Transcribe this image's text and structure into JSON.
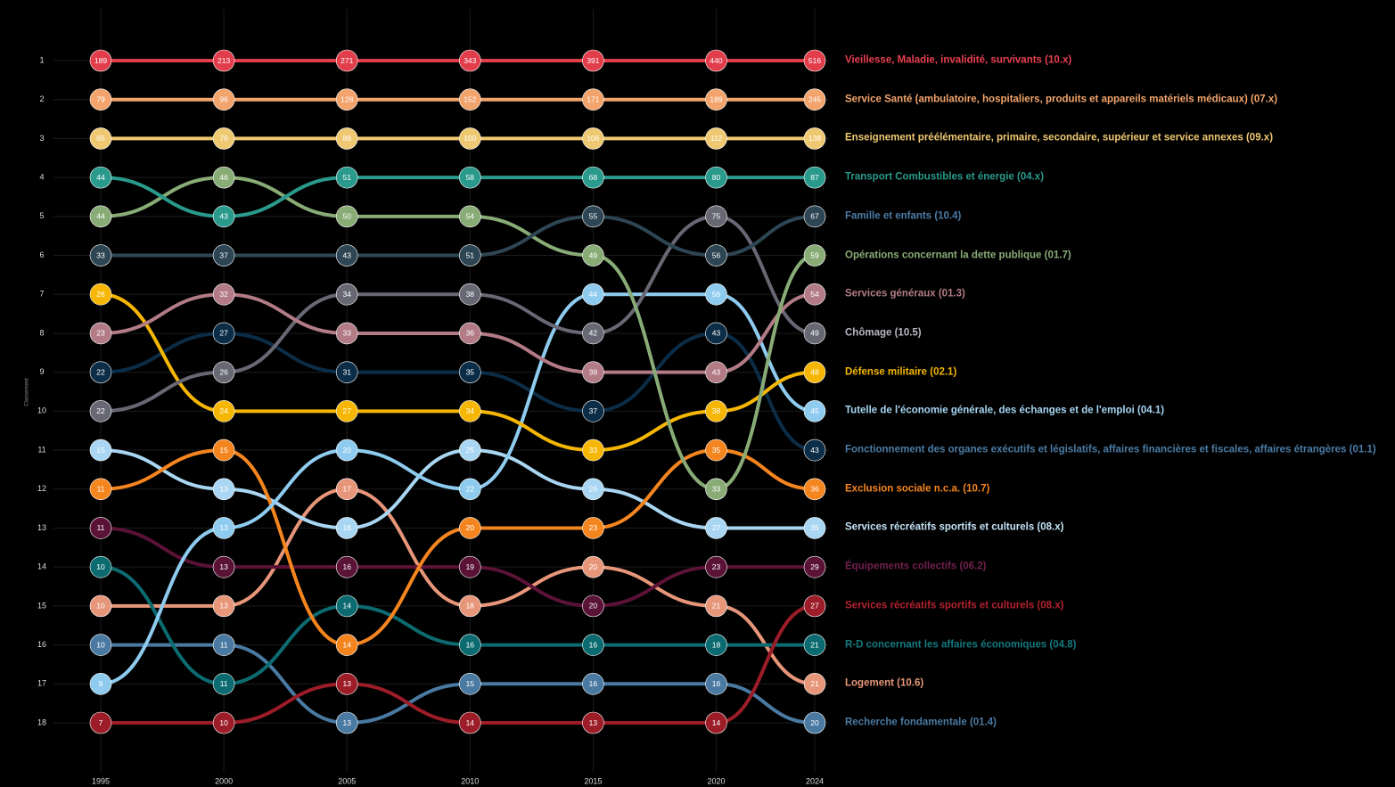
{
  "chart_data": {
    "type": "bump",
    "y_label": "Classement",
    "x": [
      1995,
      2000,
      2005,
      2010,
      2015,
      2020,
      2024
    ],
    "xlim": [
      1995,
      2024
    ],
    "xticks": [
      1995,
      2000,
      2005,
      2010,
      2015,
      2020,
      2024
    ],
    "ylim": [
      1,
      18
    ],
    "yticks": [
      1,
      2,
      3,
      4,
      5,
      6,
      7,
      8,
      9,
      10,
      11,
      12,
      13,
      14,
      15,
      16,
      17,
      18
    ],
    "grid": true,
    "series": [
      {
        "name": "Vieillesse, Maladie, invalidité, survivants (10.x)",
        "color": "#e23d4b",
        "label_color": "#e8404f",
        "values": [
          1,
          1,
          1,
          1,
          1,
          1,
          1
        ],
        "amounts": [
          189,
          213,
          271,
          343,
          391,
          440,
          516
        ]
      },
      {
        "name": "Service Santé (ambulatoire, hospitaliers, produits et appareils matériels médicaux) (07.x)",
        "color": "#f2a46c",
        "label_color": "#f2a46c",
        "values": [
          2,
          2,
          2,
          2,
          2,
          2,
          2
        ],
        "amounts": [
          79,
          96,
          128,
          152,
          171,
          189,
          245
        ]
      },
      {
        "name": "Enseignement préélémentaire, primaire, secondaire, supérieur et service annexes (09.x)",
        "color": "#efc872",
        "label_color": "#efc872",
        "values": [
          3,
          3,
          3,
          3,
          3,
          3,
          3
        ],
        "amounts": [
          65,
          76,
          88,
          100,
          106,
          112,
          138
        ]
      },
      {
        "name": "Transport Combustibles et énergie (04.x)",
        "color": "#2a9a8c",
        "label_color": "#2a9a8c",
        "values": [
          4,
          5,
          4,
          4,
          4,
          4,
          4
        ],
        "amounts": [
          44,
          43,
          51,
          58,
          68,
          80,
          87
        ]
      },
      {
        "name": "Famille et enfants (10.4)",
        "color": "#2e4654",
        "label_color": "#4b7ca6",
        "values": [
          6,
          6,
          6,
          6,
          5,
          6,
          5
        ],
        "amounts": [
          33,
          37,
          43,
          51,
          55,
          56,
          67
        ]
      },
      {
        "name": "Opérations concernant la dette publique (01.7)",
        "color": "#89ac77",
        "label_color": "#89ac77",
        "values": [
          5,
          4,
          5,
          5,
          6,
          12,
          6
        ],
        "amounts": [
          44,
          46,
          50,
          54,
          49,
          33,
          59
        ]
      },
      {
        "name": "Services généraux (01.3)",
        "color": "#b27b86",
        "label_color": "#b27b86",
        "values": [
          8,
          7,
          8,
          8,
          9,
          9,
          7
        ],
        "amounts": [
          23,
          32,
          33,
          36,
          39,
          43,
          54
        ]
      },
      {
        "name": "Chômage (10.5)",
        "color": "#686875",
        "label_color": "#b8b8c4",
        "values": [
          10,
          9,
          7,
          7,
          8,
          5,
          8
        ],
        "amounts": [
          22,
          26,
          34,
          38,
          42,
          75,
          49
        ]
      },
      {
        "name": "Défense militaire (02.1)",
        "color": "#f5b703",
        "label_color": "#f5b703",
        "values": [
          7,
          10,
          10,
          10,
          11,
          10,
          9
        ],
        "amounts": [
          26,
          24,
          27,
          34,
          33,
          38,
          48
        ]
      },
      {
        "name": "Tutelle de l'économie générale, des échanges et de l'emploi (04.1)",
        "color": "#8ecbef",
        "label_color": "#a6d6f2",
        "values": [
          17,
          13,
          11,
          12,
          7,
          7,
          10
        ],
        "amounts": [
          9,
          13,
          20,
          22,
          44,
          56,
          45
        ]
      },
      {
        "name": "Fonctionnement des organes exécutifs et législatifs, affaires financières et fiscales, affaires étrangères (01.1)",
        "color": "#0c2d47",
        "label_color": "#4b7ca6",
        "values": [
          9,
          8,
          9,
          9,
          10,
          8,
          11
        ],
        "amounts": [
          22,
          27,
          31,
          35,
          37,
          43,
          43
        ]
      },
      {
        "name": "Exclusion sociale n.c.a. (10.7)",
        "color": "#f5851e",
        "label_color": "#f5851e",
        "values": [
          12,
          11,
          16,
          13,
          13,
          11,
          12
        ],
        "amounts": [
          11,
          15,
          14,
          20,
          23,
          35,
          36
        ]
      },
      {
        "name": "Services récréatifs sportifs et culturels (08.x)",
        "color": "#a9d6f2",
        "label_color": "#c4e3f7",
        "values": [
          11,
          12,
          13,
          11,
          12,
          13,
          13
        ],
        "amounts": [
          15,
          13,
          16,
          25,
          26,
          27,
          35
        ]
      },
      {
        "name": "Équipements collectifs (06.2)",
        "color": "#5a1237",
        "label_color": "#72204d",
        "values": [
          13,
          14,
          14,
          14,
          15,
          14,
          14
        ],
        "amounts": [
          11,
          13,
          16,
          19,
          20,
          23,
          29
        ]
      },
      {
        "name": "Services récréatifs sportifs et culturels (08.x)",
        "color": "#9c1d28",
        "label_color": "#b3222f",
        "values": [
          18,
          18,
          17,
          18,
          18,
          18,
          15
        ],
        "amounts": [
          7,
          10,
          13,
          14,
          13,
          14,
          27
        ]
      },
      {
        "name": "R-D concernant les affaires économiques (04.8)",
        "color": "#0c6b70",
        "label_color": "#137a80",
        "values": [
          14,
          17,
          15,
          16,
          16,
          16,
          16
        ],
        "amounts": [
          10,
          11,
          14,
          16,
          16,
          18,
          21
        ]
      },
      {
        "name": "Logement (10.6)",
        "color": "#e79679",
        "label_color": "#e79679",
        "values": [
          15,
          15,
          12,
          15,
          14,
          15,
          17
        ],
        "amounts": [
          10,
          13,
          17,
          18,
          20,
          21,
          21
        ]
      },
      {
        "name": "Recherche fondamentale (01.4)",
        "color": "#4a7aa2",
        "label_color": "#4a7aa2",
        "values": [
          16,
          16,
          18,
          17,
          17,
          17,
          18
        ],
        "amounts": [
          10,
          11,
          13,
          15,
          16,
          16,
          20
        ]
      }
    ]
  }
}
